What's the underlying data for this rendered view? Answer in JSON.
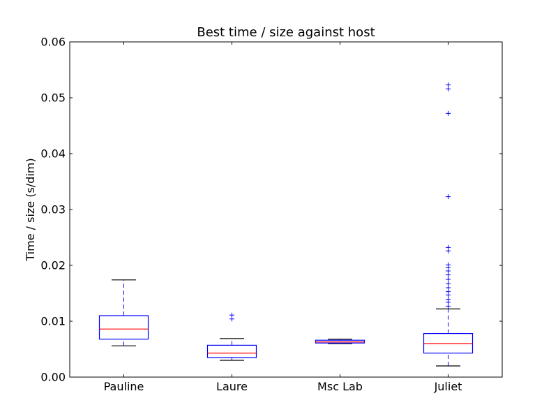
{
  "chart_data": {
    "type": "boxplot",
    "title": "Best time / size against host",
    "xlabel": "",
    "ylabel": "Time / size (s/dim)",
    "ylim": [
      0.0,
      0.06
    ],
    "yticks": [
      "0.00",
      "0.01",
      "0.02",
      "0.03",
      "0.04",
      "0.05",
      "0.06"
    ],
    "grid": false,
    "categories": [
      "Pauline",
      "Laure",
      "Msc Lab",
      "Juliet"
    ],
    "boxes": [
      {
        "category": "Pauline",
        "whisker_low": 0.0056,
        "q1": 0.0068,
        "median": 0.0086,
        "q3": 0.011,
        "whisker_high": 0.0174,
        "outliers": []
      },
      {
        "category": "Laure",
        "whisker_low": 0.003,
        "q1": 0.0035,
        "median": 0.0043,
        "q3": 0.0057,
        "whisker_high": 0.0069,
        "outliers": [
          0.0104,
          0.0111
        ]
      },
      {
        "category": "Msc Lab",
        "whisker_low": 0.006,
        "q1": 0.0061,
        "median": 0.0063,
        "q3": 0.0066,
        "whisker_high": 0.0068,
        "outliers": []
      },
      {
        "category": "Juliet",
        "whisker_low": 0.002,
        "q1": 0.0043,
        "median": 0.006,
        "q3": 0.0078,
        "whisker_high": 0.0122,
        "outliers": [
          0.0127,
          0.0134,
          0.0139,
          0.0147,
          0.0153,
          0.016,
          0.0167,
          0.0175,
          0.0183,
          0.019,
          0.0196,
          0.0201,
          0.0226,
          0.0232,
          0.0323,
          0.0472,
          0.0516,
          0.0523
        ]
      }
    ],
    "colors": {
      "box": "#0000ff",
      "median": "#ff0000",
      "whisker_cap": "#000000",
      "outlier": "#0000ff"
    }
  }
}
